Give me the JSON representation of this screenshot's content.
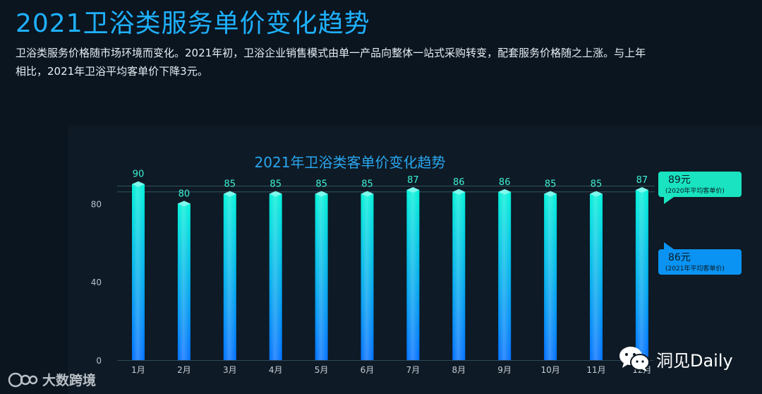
{
  "page": {
    "title": "2021卫浴类服务单价变化趋势",
    "intro": "卫浴类服务价格随市场环境而变化。2021年初，卫浴企业销售模式由单一产品向整体一站式采购转变，配套服务价格随之上涨。与上年相比，2021年卫浴平均客单价下降3元。"
  },
  "chart_data": {
    "type": "bar",
    "title": "2021年卫浴类客单价变化趋势",
    "categories": [
      "1月",
      "2月",
      "3月",
      "4月",
      "5月",
      "6月",
      "7月",
      "8月",
      "9月",
      "10月",
      "11月",
      "12月"
    ],
    "values": [
      90,
      80,
      85,
      85,
      85,
      85,
      87,
      86,
      86,
      85,
      85,
      87
    ],
    "yticks": [
      0,
      40,
      80
    ],
    "ylim": [
      0,
      90
    ],
    "grid": false,
    "reference_lines": [
      {
        "value": 89,
        "label": "89元",
        "note": "(2020年平均客单价)",
        "color": "#19e3c0"
      },
      {
        "value": 86,
        "label": "86元",
        "note": "(2021年平均客单价)",
        "color": "#0a93f2"
      }
    ],
    "colors": {
      "bar_top": "#00f0d8",
      "bar_bottom": "#0070ff",
      "title": "#2aa6ef"
    }
  },
  "watermarks": {
    "left": "大数跨境",
    "left_logo": "1688",
    "right": "洞见Daily"
  }
}
